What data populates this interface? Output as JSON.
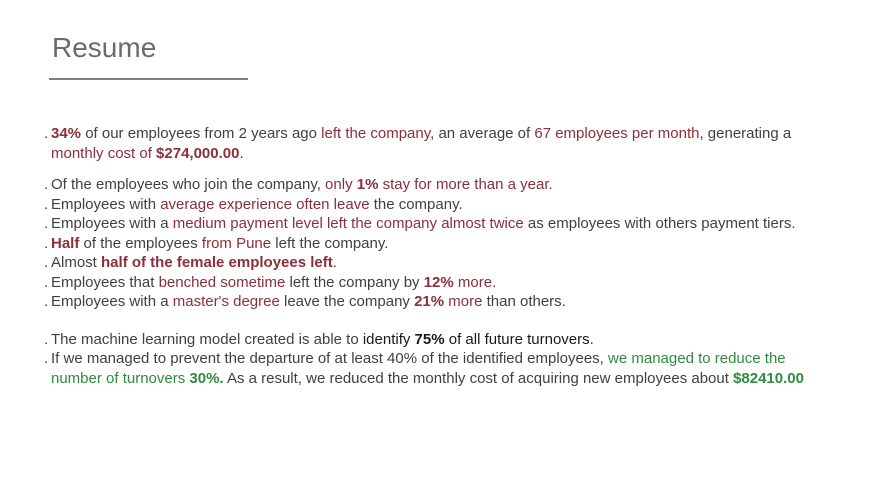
{
  "title": "Resume",
  "colors": {
    "accent_red": "#8b2f3a",
    "accent_green": "#2e8b3e",
    "text": "#404040"
  },
  "bullets": [
    {
      "segments": [
        {
          "t": "34%",
          "s": "rb"
        },
        {
          "t": " of our employees from 2 years ago ",
          "s": "n"
        },
        {
          "t": "left the company",
          "s": "r"
        },
        {
          "t": ", an average of ",
          "s": "n"
        },
        {
          "t": "67 employees per month",
          "s": "r"
        },
        {
          "t": ", generating a ",
          "s": "n"
        },
        {
          "t": "monthly cost of ",
          "s": "r"
        },
        {
          "t": "$274,000.00",
          "s": "rb"
        },
        {
          "t": ".",
          "s": "n"
        }
      ]
    },
    {
      "segments": [
        {
          "t": "Of the employees who join the company, ",
          "s": "n"
        },
        {
          "t": "only ",
          "s": "r"
        },
        {
          "t": "1%",
          "s": "rb"
        },
        {
          "t": " stay for more than a year.",
          "s": "r"
        }
      ]
    },
    {
      "segments": [
        {
          "t": "Employees with ",
          "s": "n"
        },
        {
          "t": "average experience often leave",
          "s": "r"
        },
        {
          "t": " the company.",
          "s": "n"
        }
      ]
    },
    {
      "segments": [
        {
          "t": "Employees with a ",
          "s": "n"
        },
        {
          "t": "medium payment level left the company almost twice",
          "s": "r"
        },
        {
          "t": " as employees with others payment tiers.",
          "s": "n"
        }
      ]
    },
    {
      "segments": [
        {
          "t": "Half",
          "s": "rb"
        },
        {
          "t": " of the employees ",
          "s": "n"
        },
        {
          "t": "from Pune",
          "s": "r"
        },
        {
          "t": " left the company.",
          "s": "n"
        }
      ]
    },
    {
      "segments": [
        {
          "t": "Almost ",
          "s": "n"
        },
        {
          "t": "half of the female employees left",
          "s": "rb"
        },
        {
          "t": ".",
          "s": "n"
        }
      ]
    },
    {
      "segments": [
        {
          "t": "Employees that ",
          "s": "n"
        },
        {
          "t": "benched sometime",
          "s": "r"
        },
        {
          "t": " left the company by ",
          "s": "n"
        },
        {
          "t": "12%",
          "s": "rb"
        },
        {
          "t": " more.",
          "s": "r"
        }
      ]
    },
    {
      "segments": [
        {
          "t": "Employees with a ",
          "s": "n"
        },
        {
          "t": "master's degree",
          "s": "r"
        },
        {
          "t": " leave the company ",
          "s": "n"
        },
        {
          "t": "21%",
          "s": "rb"
        },
        {
          "t": " more",
          "s": "r"
        },
        {
          "t": " than others.",
          "s": "n"
        }
      ]
    },
    {
      "segments": [
        {
          "t": "The machine learning model created is able to ",
          "s": "n"
        },
        {
          "t": "identify ",
          "s": "k"
        },
        {
          "t": "75%",
          "s": "kb"
        },
        {
          "t": " of all future turnovers",
          "s": "k"
        },
        {
          "t": ".",
          "s": "n"
        }
      ]
    },
    {
      "segments": [
        {
          "t": "If we managed to prevent the departure of at least 40% of the identified employees, ",
          "s": "n"
        },
        {
          "t": "we managed to reduce the number of turnovers ",
          "s": "g"
        },
        {
          "t": "30%.",
          "s": "gb"
        },
        {
          "t": " As a result, we reduced the monthly cost of acquiring new employees about ",
          "s": "n"
        },
        {
          "t": "$82410.00",
          "s": "gb"
        }
      ]
    }
  ]
}
